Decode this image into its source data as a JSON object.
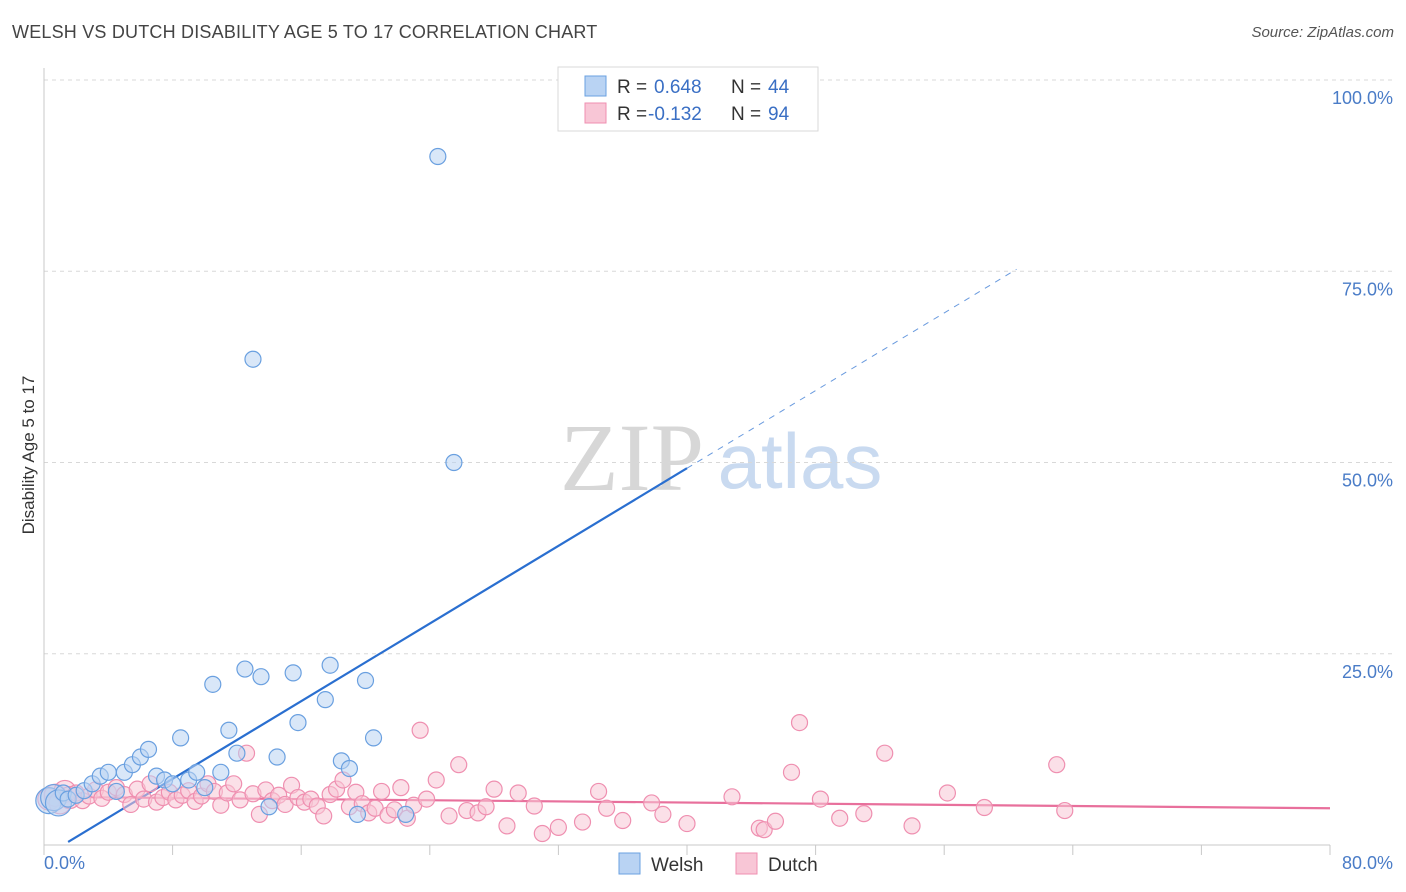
{
  "title": "WELSH VS DUTCH DISABILITY AGE 5 TO 17 CORRELATION CHART",
  "source": "Source: ZipAtlas.com",
  "watermark": {
    "zip": "ZIP",
    "atlas": "atlas"
  },
  "colors": {
    "welsh": "#6aa0e0",
    "welsh_fill": "#b9d3f3",
    "welsh_line": "#2a6fd0",
    "dutch": "#ef8fb0",
    "dutch_fill": "#f8c6d6",
    "dutch_line": "#e8709c",
    "tick": "#4a7cc7",
    "grid": "#d8d8d8"
  },
  "legend": {
    "r_label": "R =",
    "n_label": "N =",
    "welsh_r": "0.648",
    "welsh_n": "44",
    "dutch_r": "-0.132",
    "dutch_n": "94"
  },
  "bottom_legend": {
    "welsh": "Welsh",
    "dutch": "Dutch"
  },
  "chart_data": {
    "type": "scatter",
    "title": "WELSH VS DUTCH DISABILITY AGE 5 TO 17 CORRELATION CHART",
    "ylabel": "Disability Age 5 to 17",
    "xlabel": "",
    "xlim": [
      0,
      80
    ],
    "ylim": [
      0,
      100
    ],
    "x_tick_labels": [
      "0.0%",
      "80.0%"
    ],
    "y_tick_labels": [
      "25.0%",
      "50.0%",
      "75.0%",
      "100.0%"
    ],
    "y_ticks": [
      25,
      50,
      75,
      100
    ],
    "grid": true,
    "legend_position": "top-center",
    "series": [
      {
        "name": "Welsh",
        "r": 0.648,
        "n": 44,
        "trend": {
          "x0": 0,
          "y0": -1.5,
          "x1": 80,
          "y1": 100,
          "solid_until_x": 40
        },
        "points": [
          [
            0.3,
            5.8
          ],
          [
            0.6,
            6.2
          ],
          [
            0.9,
            5.5
          ],
          [
            1.2,
            6.8
          ],
          [
            1.5,
            6.0
          ],
          [
            2.0,
            6.5
          ],
          [
            2.5,
            7.1
          ],
          [
            3.0,
            8.0
          ],
          [
            3.5,
            9.0
          ],
          [
            4.0,
            9.5
          ],
          [
            4.5,
            7.0
          ],
          [
            5.0,
            9.5
          ],
          [
            5.5,
            10.5
          ],
          [
            6.0,
            11.5
          ],
          [
            6.5,
            12.5
          ],
          [
            7.0,
            9.0
          ],
          [
            7.5,
            8.5
          ],
          [
            8.0,
            8.0
          ],
          [
            8.5,
            14.0
          ],
          [
            9.0,
            8.5
          ],
          [
            9.5,
            9.5
          ],
          [
            10.0,
            7.5
          ],
          [
            10.5,
            21.0
          ],
          [
            11.0,
            9.5
          ],
          [
            11.5,
            15.0
          ],
          [
            12.0,
            12.0
          ],
          [
            12.5,
            23.0
          ],
          [
            13.0,
            63.5
          ],
          [
            13.5,
            22.0
          ],
          [
            14.0,
            5.0
          ],
          [
            14.5,
            11.5
          ],
          [
            15.5,
            22.5
          ],
          [
            15.8,
            16.0
          ],
          [
            17.5,
            19.0
          ],
          [
            17.8,
            23.5
          ],
          [
            18.5,
            11.0
          ],
          [
            19.0,
            10.0
          ],
          [
            19.5,
            4.0
          ],
          [
            20.0,
            21.5
          ],
          [
            20.5,
            14.0
          ],
          [
            22.5,
            4.0
          ],
          [
            24.5,
            90.0
          ],
          [
            25.5,
            50.0
          ],
          [
            36.5,
            100.0
          ]
        ]
      },
      {
        "name": "Dutch",
        "r": -0.132,
        "n": 94,
        "trend": {
          "x0": 0,
          "y0": 6.3,
          "x1": 80,
          "y1": 4.8
        },
        "points": [
          [
            0.3,
            6.0
          ],
          [
            0.7,
            6.5
          ],
          [
            1.0,
            5.5
          ],
          [
            1.3,
            7.0
          ],
          [
            1.6,
            6.2
          ],
          [
            2.0,
            6.8
          ],
          [
            2.4,
            5.8
          ],
          [
            2.8,
            6.4
          ],
          [
            3.2,
            7.2
          ],
          [
            3.6,
            6.1
          ],
          [
            4.0,
            6.9
          ],
          [
            4.5,
            7.5
          ],
          [
            5.0,
            6.6
          ],
          [
            5.4,
            5.3
          ],
          [
            5.8,
            7.3
          ],
          [
            6.2,
            6.0
          ],
          [
            6.6,
            8.0
          ],
          [
            7.0,
            5.6
          ],
          [
            7.4,
            6.2
          ],
          [
            7.8,
            6.9
          ],
          [
            8.2,
            5.9
          ],
          [
            8.6,
            6.5
          ],
          [
            9.0,
            7.1
          ],
          [
            9.4,
            5.7
          ],
          [
            9.8,
            6.4
          ],
          [
            10.2,
            8.0
          ],
          [
            10.6,
            7.0
          ],
          [
            11.0,
            5.2
          ],
          [
            11.4,
            6.8
          ],
          [
            11.8,
            8.0
          ],
          [
            12.2,
            5.9
          ],
          [
            12.6,
            12.0
          ],
          [
            13.0,
            6.7
          ],
          [
            13.4,
            4.0
          ],
          [
            13.8,
            7.2
          ],
          [
            14.2,
            5.8
          ],
          [
            14.6,
            6.5
          ],
          [
            15.0,
            5.3
          ],
          [
            15.4,
            7.8
          ],
          [
            15.8,
            6.2
          ],
          [
            16.2,
            5.6
          ],
          [
            16.6,
            6.0
          ],
          [
            17.0,
            5.1
          ],
          [
            17.4,
            3.8
          ],
          [
            17.8,
            6.6
          ],
          [
            18.2,
            7.3
          ],
          [
            18.6,
            8.5
          ],
          [
            19.0,
            5.0
          ],
          [
            19.4,
            6.9
          ],
          [
            19.8,
            5.4
          ],
          [
            20.2,
            4.2
          ],
          [
            20.6,
            4.8
          ],
          [
            21.0,
            7.0
          ],
          [
            21.4,
            3.9
          ],
          [
            21.8,
            4.6
          ],
          [
            22.2,
            7.5
          ],
          [
            22.6,
            3.5
          ],
          [
            23.0,
            5.2
          ],
          [
            23.4,
            15.0
          ],
          [
            23.8,
            6.0
          ],
          [
            24.4,
            8.5
          ],
          [
            25.2,
            3.8
          ],
          [
            25.8,
            10.5
          ],
          [
            26.3,
            4.5
          ],
          [
            27.0,
            4.2
          ],
          [
            27.5,
            5.0
          ],
          [
            28.0,
            7.3
          ],
          [
            28.8,
            2.5
          ],
          [
            29.5,
            6.8
          ],
          [
            30.5,
            5.1
          ],
          [
            31.0,
            1.5
          ],
          [
            32.0,
            2.3
          ],
          [
            33.5,
            3.0
          ],
          [
            34.5,
            7.0
          ],
          [
            35.0,
            4.8
          ],
          [
            36.0,
            3.2
          ],
          [
            37.8,
            5.5
          ],
          [
            38.5,
            4.0
          ],
          [
            40.0,
            2.8
          ],
          [
            42.8,
            6.3
          ],
          [
            44.5,
            2.2
          ],
          [
            44.8,
            2.0
          ],
          [
            45.5,
            3.1
          ],
          [
            46.5,
            9.5
          ],
          [
            47.0,
            16.0
          ],
          [
            48.3,
            6.0
          ],
          [
            49.5,
            3.5
          ],
          [
            51.0,
            4.1
          ],
          [
            52.3,
            12.0
          ],
          [
            54.0,
            2.5
          ],
          [
            56.2,
            6.8
          ],
          [
            58.5,
            4.9
          ],
          [
            63.0,
            10.5
          ],
          [
            63.5,
            4.5
          ]
        ]
      }
    ]
  }
}
